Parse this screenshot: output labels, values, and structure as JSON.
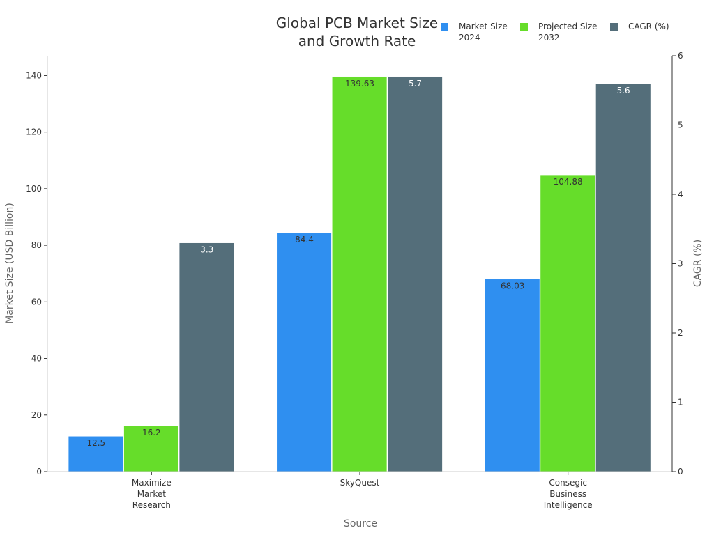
{
  "chart_data": {
    "type": "bar",
    "title": [
      "Global PCB Market Size",
      "and Growth Rate"
    ],
    "xlabel": "Source",
    "ylabel": "Market Size (USD Billion)",
    "y2label": "CAGR (%)",
    "categories": [
      [
        "Maximize",
        "Market",
        "Research"
      ],
      [
        "SkyQuest"
      ],
      [
        "Consegic",
        "Business",
        "Intelligence"
      ]
    ],
    "ylim": [
      0,
      147
    ],
    "y2lim": [
      0,
      6
    ],
    "yticks": [
      0,
      20,
      40,
      60,
      80,
      100,
      120,
      140
    ],
    "y2ticks": [
      0,
      1,
      2,
      3,
      4,
      5,
      6
    ],
    "grid": false,
    "legend_position": "top-right",
    "series": [
      {
        "name": [
          "Market Size",
          "2024"
        ],
        "axis": "left",
        "color": "#2f8ff0",
        "label_color": "#333333",
        "values": [
          12.5,
          84.4,
          68.03
        ],
        "labels": [
          "12.5",
          "84.4",
          "68.03"
        ]
      },
      {
        "name": [
          "Projected Size",
          "2032"
        ],
        "axis": "left",
        "color": "#66dd2a",
        "label_color": "#333333",
        "values": [
          16.2,
          139.63,
          104.88
        ],
        "labels": [
          "16.2",
          "139.63",
          "104.88"
        ]
      },
      {
        "name": [
          "CAGR (%)"
        ],
        "axis": "right",
        "color": "#546e7a",
        "label_color": "#ffffff",
        "values": [
          3.3,
          5.7,
          5.6
        ],
        "labels": [
          "3.3",
          "5.7",
          "5.6"
        ]
      }
    ]
  }
}
